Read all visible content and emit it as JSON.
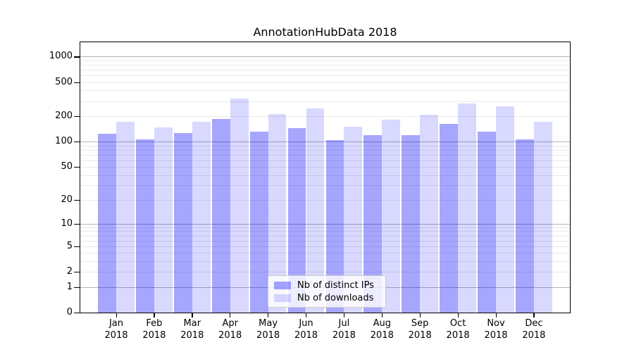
{
  "title": "AnnotationHubData 2018",
  "colors": {
    "bar_distinct_ips": "rgba(0,0,255,0.35)",
    "bar_downloads": "rgba(0,0,255,0.15)",
    "bar_distinct_ips_hex_on_white": "#a6a6ff",
    "bar_downloads_hex_on_white": "#d9d9ff",
    "grid_major": "#b3b3b3",
    "grid_minor": "#e9e9e9",
    "axis": "#000000",
    "background": "#ffffff",
    "legend_border": "#cccccc",
    "legend_background": "rgba(255,255,255,0.8)"
  },
  "chart_data": {
    "type": "bar",
    "title": "AnnotationHubData 2018",
    "categories": [
      "Jan 2018",
      "Feb 2018",
      "Mar 2018",
      "Apr 2018",
      "May 2018",
      "Jun 2018",
      "Jul 2018",
      "Aug 2018",
      "Sep 2018",
      "Oct 2018",
      "Nov 2018",
      "Dec 2018"
    ],
    "series": [
      {
        "name": "Nb of distinct IPs",
        "color": "rgba(0,0,255,0.35)",
        "values": [
          124,
          107,
          127,
          186,
          130,
          143,
          105,
          119,
          119,
          161,
          131,
          107
        ]
      },
      {
        "name": "Nb of downloads",
        "color": "rgba(0,0,255,0.15)",
        "values": [
          170,
          148,
          172,
          320,
          211,
          245,
          150,
          180,
          207,
          281,
          259,
          170
        ]
      }
    ],
    "xlabel": "",
    "ylabel": "",
    "yscale": "log1p",
    "yticks": [
      1000,
      500,
      200,
      100,
      50,
      20,
      10,
      5,
      2,
      1,
      0
    ],
    "ylim": [
      0,
      1490
    ],
    "grid": true,
    "legend_position": "lower center"
  }
}
